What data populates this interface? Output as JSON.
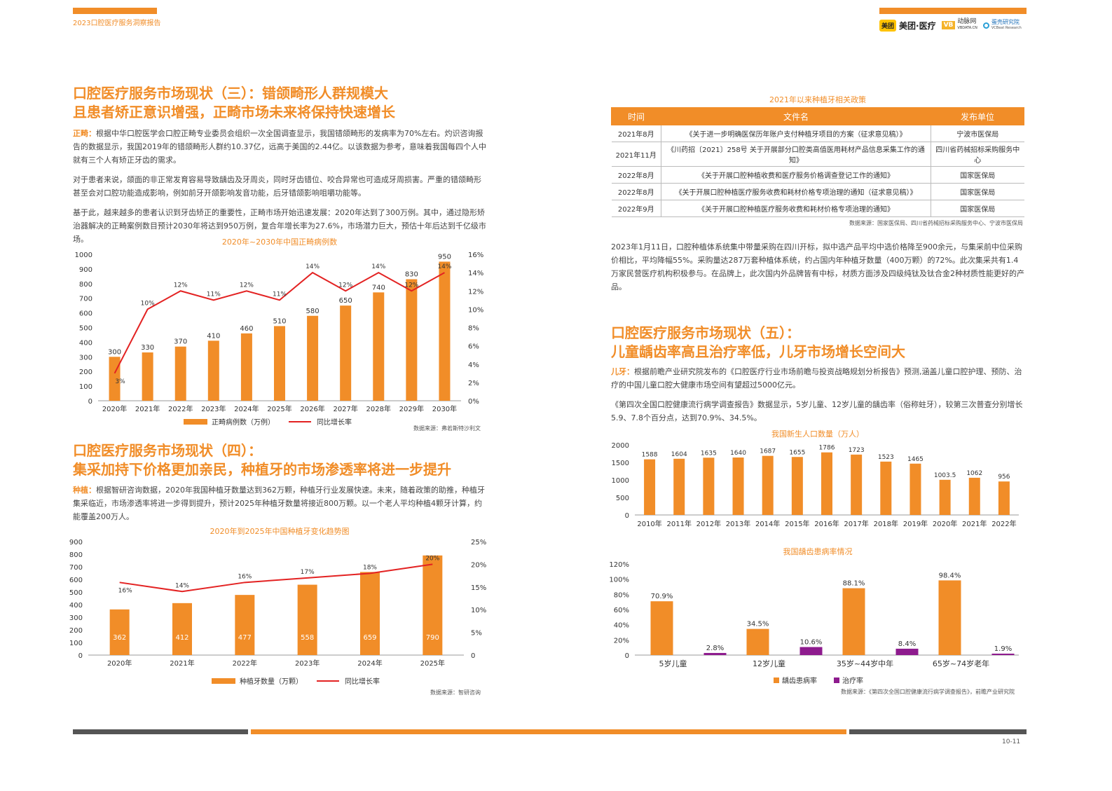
{
  "header": {
    "report_title": "2023口腔医疗服务洞察报告",
    "logo_meituan_box": "美团",
    "logo_meituan_text": "美团·医疗",
    "logo_vb_box": "VB",
    "logo_vb_text": "动脉网",
    "logo_vb_sub": "VBDATA.CN",
    "logo_yb_text": "蛋壳研究院",
    "logo_yb_sub": "VCBeat Research"
  },
  "section3": {
    "title_line1": "口腔医疗服务市场现状（三）：错颌畸形人群规模大",
    "title_line2": "且患者矫正意识增强，正畸市场未来将保持快速增长",
    "p1_kw": "正畸：",
    "p1": "根据中华口腔医学会口腔正畸专业委员会组织一次全国调查显示，我国错颌畸形的发病率为70%左右。灼识咨询报告的数据显示，我国2019年的错颌畸形人群约10.37亿，远高于美国的2.44亿。以该数据为参考，意味着我国每四个人中就有三个人有矫正牙齿的需求。",
    "p2": "对于患者来说，颌面的非正常发育容易导致龋齿及牙周炎，同时牙齿错位、咬合异常也可造成牙周损害。严重的错颌畸形甚至会对口腔功能造成影响，例如前牙开颌影响发音功能，后牙错颌影响咀嚼功能等。",
    "p3": "基于此，越来越多的患者认识到牙齿矫正的重要性，正畸市场开始迅速发展：2020年达到了300万例。其中，通过隐形矫治器解决的正畸案例数目预计2030年将达到950万例，复合年增长率为27.6%，市场潜力巨大，预估十年后达到千亿级市场。"
  },
  "chart1": {
    "title": "2020年~2030年中国正畸病例数",
    "source": "数据来源：弗若斯特沙利文",
    "legend_bar": "正畸病例数（万例）",
    "legend_line": "同比增长率",
    "categories": [
      "2020年",
      "2021年",
      "2022年",
      "2023年",
      "2024年",
      "2025年",
      "2026年",
      "2027年",
      "2028年",
      "2029年",
      "2030年"
    ],
    "bars": [
      300,
      330,
      370,
      410,
      460,
      510,
      580,
      650,
      740,
      830,
      950
    ],
    "line": [
      3,
      10,
      12,
      11,
      12,
      11,
      14,
      12,
      14,
      12,
      14
    ],
    "yleft_ticks": [
      "0",
      "100",
      "200",
      "300",
      "400",
      "500",
      "600",
      "700",
      "800",
      "900",
      "1000"
    ],
    "yright_ticks": [
      "0%",
      "2%",
      "4%",
      "6%",
      "8%",
      "10%",
      "12%",
      "14%",
      "16%"
    ],
    "ylim_left": [
      0,
      1000
    ],
    "ylim_right": [
      0,
      16
    ]
  },
  "section4": {
    "title_line1": "口腔医疗服务市场现状（四）：",
    "title_line2": "集采加持下价格更加亲民，种植牙的市场渗透率将进一步提升",
    "p1_kw": "种植：",
    "p1": "根据智研咨询数据，2020年我国种植牙数量达到362万颗，种植牙行业发展快速。未来，随着政策的助推，种植牙集采临近，市场渗透率将进一步得到提升，预计2025年种植牙数量将接近800万颗。以一个老人平均种植4颗牙计算，约能覆盖200万人。"
  },
  "chart2": {
    "title": "2020年到2025年中国种植牙变化趋势图",
    "source": "数据来源：智研咨询",
    "legend_bar": "种植牙数量（万颗）",
    "legend_line": "同比增长率",
    "categories": [
      "2020年",
      "2021年",
      "2022年",
      "2023年",
      "2024年",
      "2025年"
    ],
    "bars": [
      362,
      412,
      477,
      558,
      659,
      790
    ],
    "line": [
      16,
      14,
      16,
      17,
      18,
      20
    ],
    "yleft_ticks": [
      "0",
      "100",
      "200",
      "300",
      "400",
      "500",
      "600",
      "700",
      "800",
      "900"
    ],
    "yright_ticks": [
      "0",
      "5%",
      "10%",
      "15%",
      "20%",
      "25%"
    ],
    "ylim_left": [
      0,
      900
    ],
    "ylim_right": [
      0,
      25
    ]
  },
  "policy_table": {
    "title": "2021年以来种植牙相关政策",
    "headers": [
      "时间",
      "文件名",
      "发布单位"
    ],
    "rows": [
      [
        "2021年8月",
        "《关于进一步明确医保历年账户支付种植牙项目的方案（征求意见稿）》",
        "宁波市医保局"
      ],
      [
        "2021年11月",
        "《川药招〔2021〕258号 关于开展部分口腔类高值医用耗材产品信息采集工作的通知》",
        "四川省药械招标采购服务中心"
      ],
      [
        "2022年8月",
        "《关于开展口腔种植收费和医疗服务价格调查登记工作的通知》",
        "国家医保局"
      ],
      [
        "2022年8月",
        "《关于开展口腔种植医疗服务收费和耗材价格专项治理的通知（征求意见稿）》",
        "国家医保局"
      ],
      [
        "2022年9月",
        "《关于开展口腔种植医疗服务收费和耗材价格专项治理的通知》",
        "国家医保局"
      ]
    ],
    "source": "数据来源：国家医保局、四川省药械招标采购服务中心、宁波市医保局"
  },
  "section4b": {
    "p1": "2023年1月11日，口腔种植体系统集中带量采购在四川开标，拟中选产品平均中选价格降至900余元，与集采前中位采购价相比，平均降幅55%。采购量达287万套种植体系统，约占国内年种植牙数量（400万颗）的72%。此次集采共有1.4万家民营医疗机构积极参与。在品牌上，此次国内外品牌皆有中标，材质方面涉及四级纯钛及钛合金2种材质性能更好的产品。"
  },
  "section5": {
    "title_line1": "口腔医疗服务市场现状（五）：",
    "title_line2": "儿童龋齿率高且治疗率低，儿牙市场增长空间大",
    "p1_kw": "儿牙：",
    "p1": "根据前瞻产业研究院发布的《口腔医疗行业市场前瞻与投资战略规划分析报告》预测,涵盖儿童口腔护理、预防、治疗的中国儿童口腔大健康市场空间有望超过5000亿元。",
    "p2": "《第四次全国口腔健康流行病学调查报告》数据显示，5岁儿童、12岁儿童的龋齿率（俗称蛀牙），较第三次普查分别增长5.9、7.8个百分点，达到70.9%、34.5%。"
  },
  "chart3": {
    "title": "我国新生人口数量（万人）",
    "categories": [
      "2010年",
      "2011年",
      "2012年",
      "2013年",
      "2014年",
      "2015年",
      "2016年",
      "2017年",
      "2018年",
      "2019年",
      "2020年",
      "2021年",
      "2022年"
    ],
    "bars": [
      1588,
      1604,
      1635,
      1640,
      1687,
      1655,
      1786,
      1723,
      1523,
      1465,
      1003.5,
      1062,
      956
    ],
    "bar_labels": [
      "1588",
      "1604",
      "1635",
      "1640",
      "1687",
      "1655",
      "1786",
      "1723",
      "1523",
      "1465",
      "1003.5",
      "1062",
      "956"
    ],
    "y_ticks": [
      "0",
      "500",
      "1000",
      "1500",
      "2000"
    ],
    "ylim": [
      0,
      2000
    ]
  },
  "chart4": {
    "title": "我国龋齿患病率情况",
    "source": "数据来源：《第四次全国口腔健康流行病学调查报告》，前瞻产业研究院",
    "categories": [
      "5岁儿童",
      "12岁儿童",
      "35岁~44岁中年",
      "65岁~74岁老年"
    ],
    "series": [
      {
        "name": "龋齿患病率",
        "values": [
          70.9,
          34.5,
          88.1,
          98.4
        ],
        "labels": [
          "70.9%",
          "34.5%",
          "88.1%",
          "98.4%"
        ],
        "color": "#f18d28"
      },
      {
        "name": "治疗率",
        "values": [
          2.8,
          10.6,
          8.4,
          1.9
        ],
        "labels": [
          "2.8%",
          "10.6%",
          "8.4%",
          "1.9%"
        ],
        "color": "#8e1b8e"
      }
    ],
    "y_ticks": [
      "0",
      "20%",
      "40%",
      "60%",
      "80%",
      "100%",
      "120%"
    ],
    "ylim": [
      0,
      120
    ]
  },
  "footer": {
    "page": "10-11"
  },
  "colors": {
    "accent": "#f18d28",
    "line": "#e32222",
    "purple": "#8e1b8e"
  }
}
